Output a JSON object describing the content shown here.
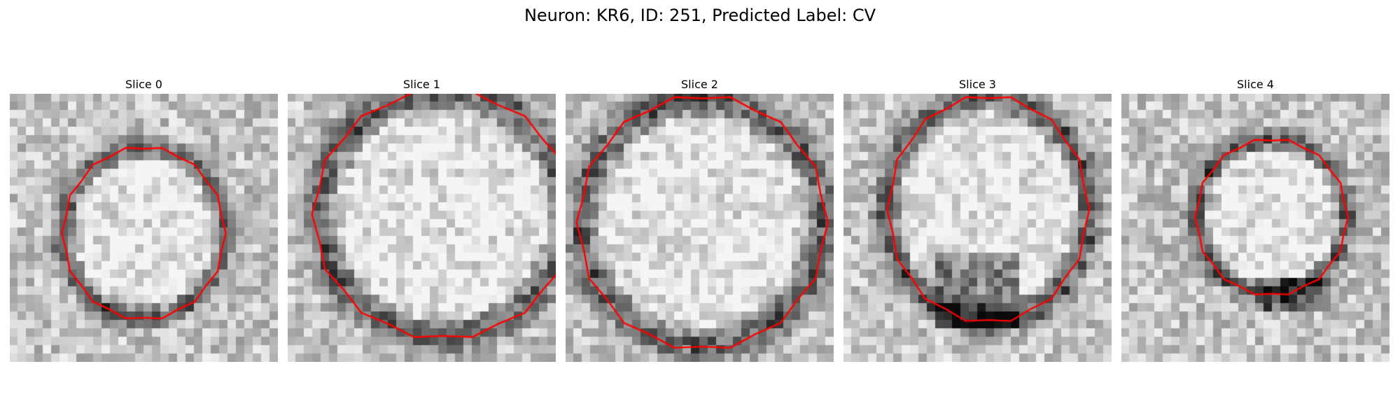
{
  "figure": {
    "title": "Neuron: KR6, ID: 251, Predicted Label: CV"
  },
  "panels": [
    {
      "title": "Slice 0",
      "seed": 11
    },
    {
      "title": "Slice 1",
      "seed": 23
    },
    {
      "title": "Slice 2",
      "seed": 37
    },
    {
      "title": "Slice 3",
      "seed": 51
    },
    {
      "title": "Slice 4",
      "seed": 67
    }
  ],
  "colors": {
    "contour": "#ff0000",
    "background": "#ffffff"
  }
}
